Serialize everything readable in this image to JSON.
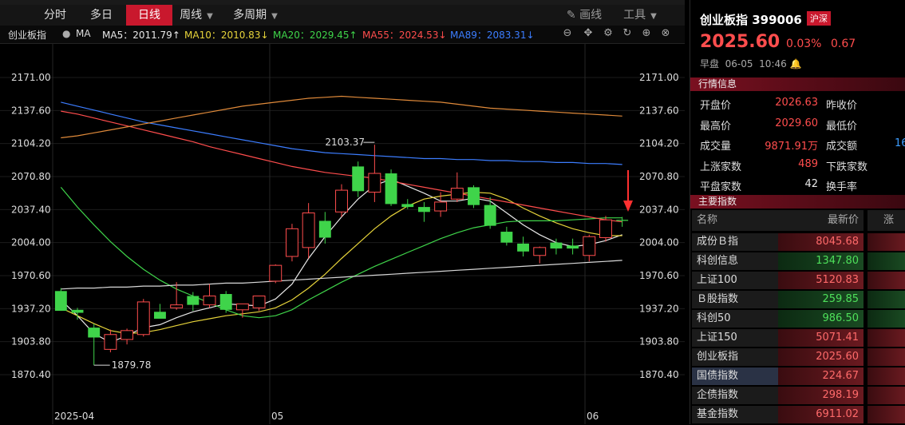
{
  "toolbar": {
    "periods": [
      {
        "label": "分时",
        "active": false
      },
      {
        "label": "多日",
        "active": false
      },
      {
        "label": "日线",
        "active": true
      },
      {
        "label": "周线",
        "active": false
      },
      {
        "label": "多周期",
        "active": false
      }
    ],
    "draw_label": "画线",
    "tools_label": "工具"
  },
  "indicator_bar": {
    "name": "创业板指",
    "ma_label": "MA",
    "items": [
      {
        "text": "MA5：2011.79↑",
        "color": "#e8e8e8"
      },
      {
        "text": "MA10：2010.83↓",
        "color": "#e6d33a"
      },
      {
        "text": "MA20：2029.45↑",
        "color": "#3fd44a"
      },
      {
        "text": "MA55：2024.53↓",
        "color": "#ff4d4d"
      },
      {
        "text": "MA89：2083.31↓",
        "color": "#3c7dff"
      }
    ]
  },
  "chart_data": {
    "type": "candlestick",
    "y_ticks": [
      "2171.00",
      "2137.60",
      "2104.20",
      "2070.80",
      "2037.40",
      "2004.00",
      "1970.60",
      "1937.20",
      "1903.80",
      "1870.40"
    ],
    "x_ticks": [
      "2025-04",
      "05",
      "06"
    ],
    "ylim": [
      1850,
      2190
    ],
    "candles": [
      {
        "o": 1955,
        "h": 1958,
        "l": 1935,
        "c": 1935
      },
      {
        "o": 1936,
        "h": 1938,
        "l": 1926,
        "c": 1933
      },
      {
        "o": 1918,
        "h": 1922,
        "l": 1880,
        "c": 1908
      },
      {
        "o": 1896,
        "h": 1916,
        "l": 1893,
        "c": 1911
      },
      {
        "o": 1906,
        "h": 1917,
        "l": 1901,
        "c": 1915
      },
      {
        "o": 1911,
        "h": 1947,
        "l": 1909,
        "c": 1944
      },
      {
        "o": 1934,
        "h": 1942,
        "l": 1928,
        "c": 1927
      },
      {
        "o": 1938,
        "h": 1964,
        "l": 1936,
        "c": 1941
      },
      {
        "o": 1950,
        "h": 1954,
        "l": 1935,
        "c": 1941
      },
      {
        "o": 1941,
        "h": 1962,
        "l": 1938,
        "c": 1950
      },
      {
        "o": 1952,
        "h": 1955,
        "l": 1933,
        "c": 1936
      },
      {
        "o": 1936,
        "h": 1940,
        "l": 1928,
        "c": 1942
      },
      {
        "o": 1938,
        "h": 1948,
        "l": 1935,
        "c": 1950
      },
      {
        "o": 1965,
        "h": 1982,
        "l": 1963,
        "c": 1981
      },
      {
        "o": 1990,
        "h": 2023,
        "l": 1985,
        "c": 2018
      },
      {
        "o": 1999,
        "h": 2044,
        "l": 1988,
        "c": 2034
      },
      {
        "o": 2026,
        "h": 2035,
        "l": 2003,
        "c": 2009
      },
      {
        "o": 2035,
        "h": 2063,
        "l": 2030,
        "c": 2057
      },
      {
        "o": 2081,
        "h": 2086,
        "l": 2050,
        "c": 2056
      },
      {
        "o": 2055,
        "h": 2103,
        "l": 2045,
        "c": 2074
      },
      {
        "o": 2074,
        "h": 2078,
        "l": 2041,
        "c": 2043
      },
      {
        "o": 2043,
        "h": 2048,
        "l": 2038,
        "c": 2040
      },
      {
        "o": 2040,
        "h": 2045,
        "l": 2025,
        "c": 2035
      },
      {
        "o": 2036,
        "h": 2055,
        "l": 2030,
        "c": 2045
      },
      {
        "o": 2048,
        "h": 2075,
        "l": 2045,
        "c": 2059
      },
      {
        "o": 2060,
        "h": 2062,
        "l": 2039,
        "c": 2042
      },
      {
        "o": 2042,
        "h": 2050,
        "l": 2018,
        "c": 2021
      },
      {
        "o": 2015,
        "h": 2020,
        "l": 2001,
        "c": 2004
      },
      {
        "o": 2003,
        "h": 2010,
        "l": 1990,
        "c": 1995
      },
      {
        "o": 1991,
        "h": 2000,
        "l": 1983,
        "c": 1999
      },
      {
        "o": 2004,
        "h": 2008,
        "l": 1992,
        "c": 1998
      },
      {
        "o": 2001,
        "h": 2008,
        "l": 1992,
        "c": 1998
      },
      {
        "o": 1991,
        "h": 2012,
        "l": 1985,
        "c": 2010
      },
      {
        "o": 2009,
        "h": 2031,
        "l": 2005,
        "c": 2027
      },
      {
        "o": 2027,
        "h": 2030,
        "l": 2020,
        "c": 2026
      }
    ],
    "annotations": [
      {
        "label": "2103.37",
        "type": "high"
      },
      {
        "label": "1879.78",
        "type": "low"
      }
    ],
    "ma_lines": [
      {
        "name": "MA5",
        "color": "#e8e8e8",
        "values": [
          1946,
          1930,
          1912,
          1903,
          1910,
          1918,
          1921,
          1928,
          1934,
          1938,
          1942,
          1941,
          1940,
          1947,
          1962,
          1988,
          2010,
          2030,
          2048,
          2062,
          2068,
          2061,
          2054,
          2046,
          2046,
          2049,
          2046,
          2034,
          2022,
          2012,
          2004,
          2000,
          2002,
          2006,
          2012
        ]
      },
      {
        "name": "MA10",
        "color": "#e6d33a",
        "values": [
          1938,
          1930,
          1922,
          1915,
          1912,
          1913,
          1916,
          1920,
          1924,
          1927,
          1930,
          1932,
          1934,
          1938,
          1946,
          1958,
          1972,
          1988,
          2003,
          2018,
          2031,
          2041,
          2048,
          2051,
          2053,
          2055,
          2054,
          2048,
          2039,
          2031,
          2024,
          2018,
          2014,
          2011,
          2011
        ]
      },
      {
        "name": "MA20",
        "color": "#3fd44a",
        "values": [
          2060,
          2040,
          2022,
          2005,
          1990,
          1977,
          1966,
          1957,
          1950,
          1943,
          1936,
          1930,
          1928,
          1930,
          1936,
          1946,
          1955,
          1964,
          1972,
          1980,
          1987,
          1994,
          2001,
          2008,
          2014,
          2019,
          2022,
          2025,
          2026,
          2026,
          2026,
          2027,
          2028,
          2029,
          2029
        ]
      },
      {
        "name": "MA55",
        "color": "#ff4d4d",
        "values": [
          2137,
          2134,
          2130,
          2126,
          2122,
          2118,
          2114,
          2110,
          2106,
          2101,
          2097,
          2093,
          2089,
          2085,
          2081,
          2078,
          2075,
          2073,
          2071,
          2069,
          2066,
          2063,
          2060,
          2057,
          2054,
          2051,
          2048,
          2045,
          2042,
          2039,
          2036,
          2033,
          2030,
          2027,
          2025
        ]
      },
      {
        "name": "MA89",
        "color": "#3c7dff",
        "values": [
          2146,
          2142,
          2138,
          2134,
          2130,
          2126,
          2123,
          2120,
          2117,
          2114,
          2111,
          2108,
          2105,
          2102,
          2099,
          2097,
          2095,
          2094,
          2093,
          2092,
          2091,
          2090,
          2089,
          2089,
          2088,
          2088,
          2087,
          2087,
          2086,
          2086,
          2085,
          2085,
          2084,
          2084,
          2083
        ]
      },
      {
        "name": "MA-long",
        "color": "#e08a3a",
        "values": [
          2110,
          2112,
          2115,
          2118,
          2121,
          2124,
          2127,
          2130,
          2133,
          2136,
          2139,
          2142,
          2144,
          2146,
          2148,
          2150,
          2151,
          2152,
          2151,
          2150,
          2149,
          2148,
          2147,
          2146,
          2144,
          2142,
          2140,
          2139,
          2138,
          2137,
          2136,
          2135,
          2134,
          2133,
          2132
        ]
      },
      {
        "name": "MA-base",
        "color": "#d8d8d8",
        "values": [
          1957,
          1958,
          1958,
          1959,
          1959,
          1960,
          1960,
          1961,
          1961,
          1962,
          1963,
          1963,
          1964,
          1965,
          1966,
          1967,
          1968,
          1969,
          1970,
          1971,
          1972,
          1973,
          1974,
          1975,
          1976,
          1977,
          1978,
          1979,
          1980,
          1981,
          1982,
          1983,
          1984,
          1985,
          1986
        ]
      }
    ]
  },
  "quote": {
    "name": "创业板指",
    "code": "399006",
    "exchange_badge": "沪深",
    "price": "2025.60",
    "change_pct": "0.03%",
    "change": "0.67",
    "session": "早盘",
    "date": "06-05",
    "time": "10:46"
  },
  "market_info": {
    "section_title": "行情信息",
    "rows": [
      {
        "l1": "开盘价",
        "v1": "2026.63",
        "c1": "up",
        "l2": "昨收价"
      },
      {
        "l1": "最高价",
        "v1": "2029.60",
        "c1": "up",
        "l2": "最低价"
      },
      {
        "l1": "成交量",
        "v1": "9871.91万",
        "c1": "up",
        "l2": "成交额",
        "v2": "16"
      },
      {
        "l1": "上涨家数",
        "v1": "489",
        "c1": "up",
        "l2": "下跌家数"
      },
      {
        "l1": "平盘家数",
        "v1": "42",
        "c1": "wt",
        "l2": "换手率"
      }
    ]
  },
  "main_indices": {
    "section_title": "主要指数",
    "col_name": "名称",
    "col_price": "最新价",
    "col_extra": "涨",
    "rows": [
      {
        "name": "成份Ｂ指",
        "price": "8045.68",
        "dir": "up"
      },
      {
        "name": "科创信息",
        "price": "1347.80",
        "dir": "dn"
      },
      {
        "name": "上证100",
        "price": "5120.83",
        "dir": "up"
      },
      {
        "name": "Ｂ股指数",
        "price": "259.85",
        "dir": "dn"
      },
      {
        "name": "科创50",
        "price": "986.50",
        "dir": "dn"
      },
      {
        "name": "上证150",
        "price": "5071.41",
        "dir": "up"
      },
      {
        "name": "创业板指",
        "price": "2025.60",
        "dir": "up"
      },
      {
        "name": "国债指数",
        "price": "224.67",
        "dir": "up"
      },
      {
        "name": "企债指数",
        "price": "298.19",
        "dir": "up"
      },
      {
        "name": "基金指数",
        "price": "6911.02",
        "dir": "up"
      }
    ]
  }
}
